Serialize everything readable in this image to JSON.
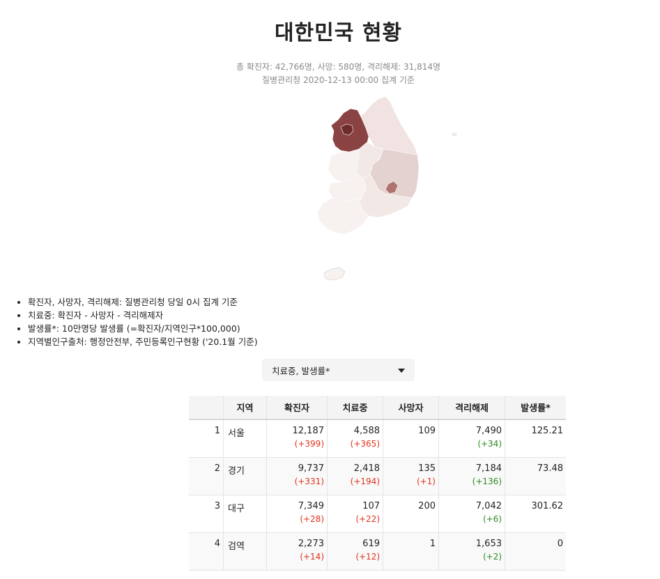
{
  "page": {
    "title": "대한민국 현황",
    "summary": "총 확진자: 42,766명, 사망: 580명, 격리해제: 31,814명",
    "source": "질병관리청 2020-12-13 00:00 집계 기준"
  },
  "map": {
    "colors": {
      "seoul": "#6e2b2b",
      "gyeonggi": "#8a4242",
      "daegu": "#b0746e",
      "gyeongbuk": "#e4d2d0",
      "light": "#f2e9e7",
      "lighter": "#f7f1f0",
      "gangwon": "#f0e3e2"
    }
  },
  "notes": [
    "확진자, 사망자, 격리해제: 질병관리청 당일 0시 집계 기준",
    "치료중: 확진자 - 사망자 - 격리해제자",
    "발생률*: 10만명당 발생률 (=확진자/지역인구*100,000)",
    "지역별인구출처: 행정안전부, 주민등록인구현황 ('20.1월 기준)"
  ],
  "selector": {
    "value": "치료중, 발생률*"
  },
  "table": {
    "headers": [
      "",
      "지역",
      "확진자",
      "치료중",
      "사망자",
      "격리해제",
      "발생률*"
    ],
    "rows": [
      {
        "idx": "1",
        "region": "서울",
        "confirmed": "12,187",
        "confirmed_delta": "(+399)",
        "treating": "4,588",
        "treating_delta": "(+365)",
        "deaths": "109",
        "deaths_delta": "",
        "released": "7,490",
        "released_delta": "(+34)",
        "rate": "125.21"
      },
      {
        "idx": "2",
        "region": "경기",
        "confirmed": "9,737",
        "confirmed_delta": "(+331)",
        "treating": "2,418",
        "treating_delta": "(+194)",
        "deaths": "135",
        "deaths_delta": "(+1)",
        "released": "7,184",
        "released_delta": "(+136)",
        "rate": "73.48"
      },
      {
        "idx": "3",
        "region": "대구",
        "confirmed": "7,349",
        "confirmed_delta": "(+28)",
        "treating": "107",
        "treating_delta": "(+22)",
        "deaths": "200",
        "deaths_delta": "",
        "released": "7,042",
        "released_delta": "(+6)",
        "rate": "301.62"
      },
      {
        "idx": "4",
        "region": "검역",
        "confirmed": "2,273",
        "confirmed_delta": "(+14)",
        "treating": "619",
        "treating_delta": "(+12)",
        "deaths": "1",
        "deaths_delta": "",
        "released": "1,653",
        "released_delta": "(+2)",
        "rate": "0"
      }
    ]
  }
}
